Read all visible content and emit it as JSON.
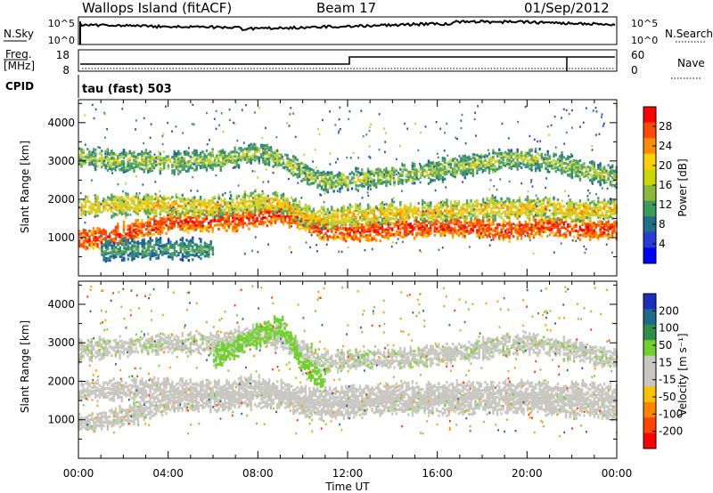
{
  "header": {
    "title": "Wallops Island (fitACF)",
    "beam": "Beam 17",
    "date": "01/Sep/2012"
  },
  "noise_panel": {
    "left_label": "N.Sky",
    "left_ticks": [
      "10^5",
      "10^0"
    ],
    "right_label": "N.Search",
    "right_ticks": [
      "10^5",
      "10^0"
    ]
  },
  "freq_panel": {
    "left_label_1": "Freq.",
    "left_label_2": "[MHz]",
    "left_ticks": [
      "18",
      "8"
    ],
    "right_label": "Nave",
    "right_ticks": [
      "60",
      "0"
    ]
  },
  "cpid": {
    "label": "CPID",
    "value": "tau (fast) 503"
  },
  "power_colorbar": {
    "label": "Power [dB]",
    "ticks": [
      "28",
      "24",
      "20",
      "16",
      "12",
      "8",
      "4"
    ],
    "colors": [
      "#ff0000",
      "#ff4a00",
      "#ff8c00",
      "#ffcf00",
      "#c9d800",
      "#8ab93a",
      "#3a9c5a",
      "#1f6f88",
      "#2a3bd6",
      "#0000ff"
    ]
  },
  "velocity_colorbar": {
    "label": "Velocity [m s⁻¹]",
    "ticks": [
      "200",
      "100",
      "50",
      "15",
      "-15",
      "-50",
      "-100",
      "-200"
    ],
    "colors": [
      "#1a2fbf",
      "#1d6b8a",
      "#2d8f4a",
      "#6fd12c",
      "#c8c6c0",
      "#c8c6c0",
      "#ffc000",
      "#ff8400",
      "#ff4400",
      "#ff0000"
    ]
  },
  "chart_data": [
    {
      "type": "heatmap",
      "name": "power",
      "ylabel": "Slant Range [km]",
      "ylim": [
        0,
        4600
      ],
      "y_ticks": [
        1000,
        2000,
        3000,
        4000
      ],
      "xlim_hours": [
        0,
        24
      ],
      "x_ticks": [
        "00:00",
        "04:00",
        "08:00",
        "12:00",
        "16:00",
        "20:00",
        "00:00"
      ],
      "xlabel": "Time UT",
      "bands": [
        {
          "x": [
            0,
            1,
            2,
            3,
            4,
            5,
            6,
            7,
            8,
            9,
            10,
            11,
            12,
            13,
            14,
            15,
            16,
            17,
            18,
            19,
            20,
            21,
            22,
            23,
            24
          ],
          "y": [
            950,
            1000,
            1100,
            1250,
            1400,
            1420,
            1450,
            1450,
            1550,
            1650,
            1450,
            1200,
            1150,
            1200,
            1250,
            1250,
            1300,
            1300,
            1250,
            1200,
            1250,
            1300,
            1250,
            1200,
            1200
          ],
          "value_db": 26
        },
        {
          "x": [
            0,
            2,
            4,
            6,
            8,
            9,
            10,
            11,
            12,
            14,
            16,
            18,
            20,
            22,
            24
          ],
          "y": [
            1800,
            1850,
            1850,
            1800,
            1950,
            1900,
            1600,
            1500,
            1600,
            1650,
            1700,
            1750,
            1800,
            1700,
            1750
          ],
          "value_db": 18
        },
        {
          "x": [
            0,
            1,
            2,
            3,
            4,
            5,
            6,
            7,
            8,
            9,
            10,
            11,
            12,
            14,
            16,
            18,
            19,
            20,
            21,
            22,
            23,
            24
          ],
          "y": [
            3100,
            3050,
            3000,
            3000,
            2950,
            3000,
            3050,
            3100,
            3250,
            3050,
            2700,
            2450,
            2500,
            2600,
            2750,
            2950,
            3050,
            3050,
            3000,
            2850,
            2700,
            2550
          ],
          "value_db": 14
        },
        {
          "x": [
            1,
            2,
            3,
            4,
            5,
            6
          ],
          "y": [
            650,
            700,
            720,
            720,
            700,
            680
          ],
          "value_db": 10
        }
      ]
    },
    {
      "type": "heatmap",
      "name": "velocity",
      "ylabel": "Slant Range [km]",
      "ylim": [
        0,
        4600
      ],
      "y_ticks": [
        1000,
        2000,
        3000,
        4000
      ],
      "xlim_hours": [
        0,
        24
      ],
      "x_ticks": [
        "00:00",
        "04:00",
        "08:00",
        "12:00",
        "16:00",
        "20:00",
        "00:00"
      ],
      "xlabel": "Time UT",
      "bands": [
        {
          "x": [
            0,
            2,
            4,
            6,
            8,
            9,
            10,
            11,
            12,
            14,
            16,
            18,
            20,
            22,
            24
          ],
          "y": [
            900,
            1100,
            1450,
            1500,
            1550,
            1600,
            1350,
            1250,
            1350,
            1400,
            1400,
            1400,
            1450,
            1350,
            1300
          ],
          "value_ms": 0
        },
        {
          "x": [
            0,
            2,
            4,
            6,
            8,
            10,
            12,
            14,
            16,
            18,
            20,
            22,
            24
          ],
          "y": [
            1750,
            1800,
            1800,
            1750,
            1900,
            1600,
            1600,
            1700,
            1700,
            1750,
            1750,
            1700,
            1700
          ],
          "value_ms": -5
        },
        {
          "x": [
            0,
            2,
            4,
            6,
            7,
            8,
            9,
            10,
            11,
            12,
            14,
            16,
            18,
            20,
            22,
            24
          ],
          "y": [
            2800,
            2900,
            3000,
            3000,
            3100,
            3250,
            3100,
            2800,
            2500,
            2600,
            2600,
            2700,
            2850,
            3000,
            2800,
            2600
          ],
          "value_ms": 10
        },
        {
          "x": [
            6,
            7,
            8,
            9,
            10,
            11
          ],
          "y": [
            2600,
            2900,
            3200,
            3500,
            2400,
            2000
          ],
          "value_ms": 40
        }
      ]
    }
  ]
}
